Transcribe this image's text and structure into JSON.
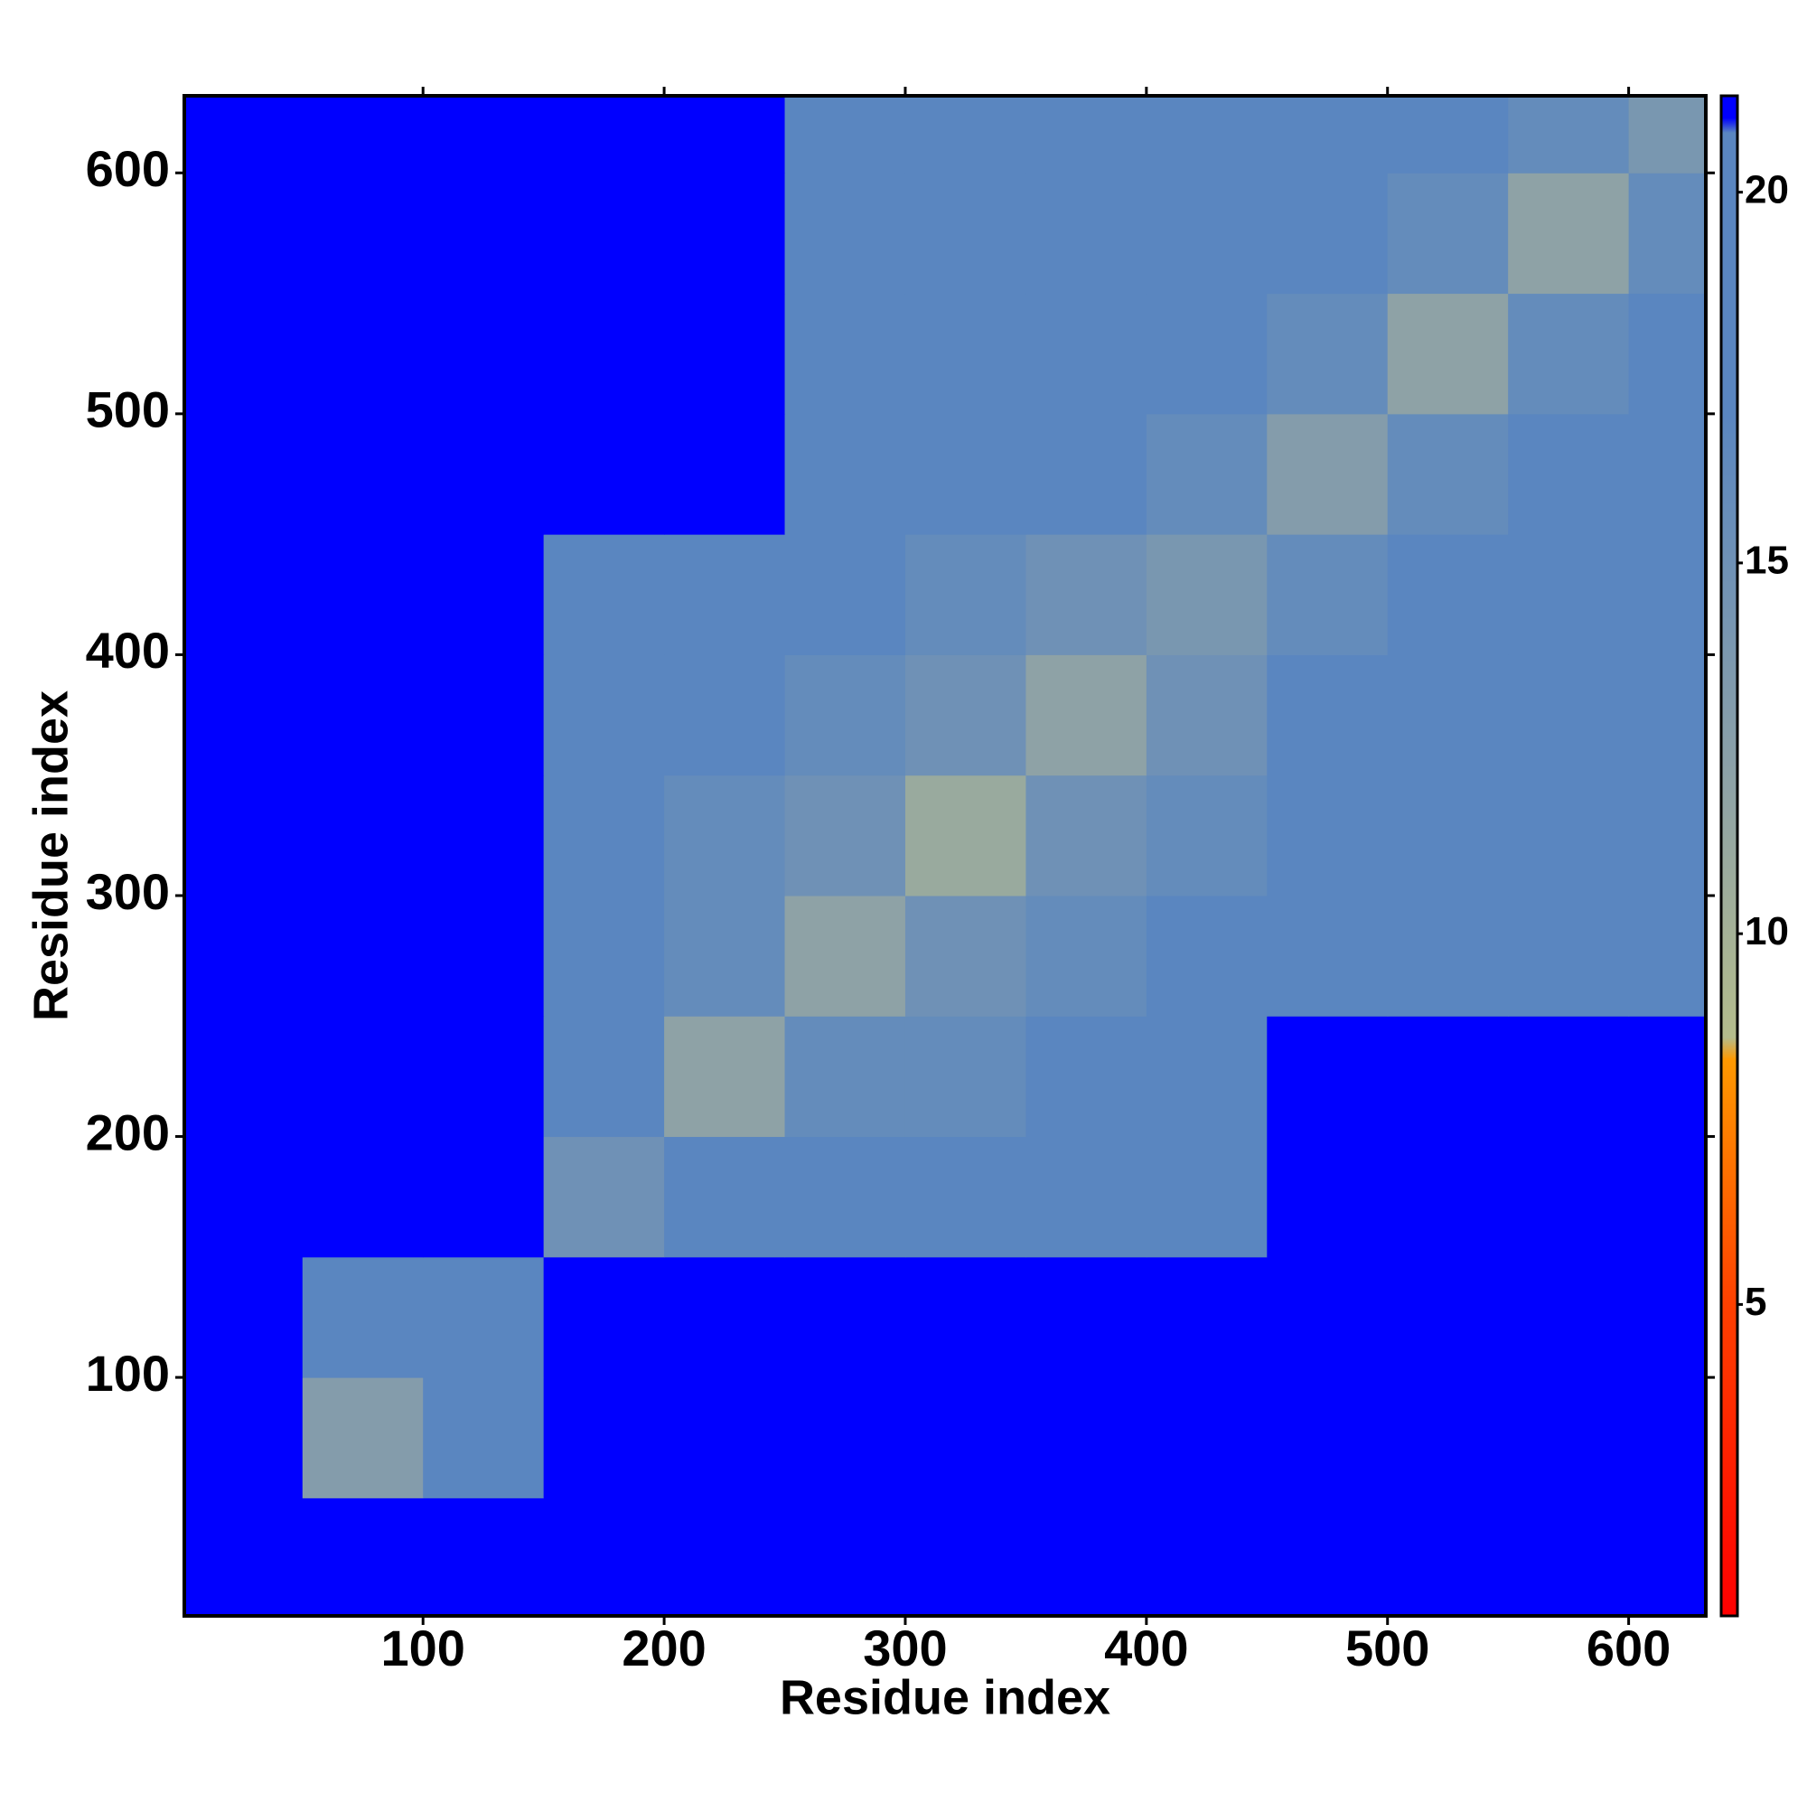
{
  "chart_data": {
    "type": "heatmap",
    "x_label": "Residue index",
    "y_label": "Residue index",
    "xbins": [
      1,
      50,
      100,
      150,
      200,
      250,
      300,
      350,
      400,
      450,
      500,
      550,
      600,
      632
    ],
    "ybins": [
      1,
      50,
      100,
      150,
      200,
      250,
      300,
      350,
      400,
      450,
      500,
      550,
      600,
      632
    ],
    "values": [
      [
        21,
        21,
        21,
        21,
        21,
        21,
        21,
        21,
        21,
        21,
        21,
        21,
        21
      ],
      [
        21,
        13,
        20,
        21,
        21,
        21,
        21,
        21,
        21,
        21,
        21,
        21,
        21
      ],
      [
        21,
        20,
        19,
        21,
        21,
        21,
        21,
        21,
        21,
        21,
        21,
        21,
        21
      ],
      [
        21,
        21,
        21,
        15,
        17,
        17,
        18,
        19,
        20,
        21,
        21,
        21,
        21
      ],
      [
        21,
        21,
        21,
        17,
        12,
        16,
        16,
        17,
        18,
        21,
        21,
        21,
        21
      ],
      [
        21,
        21,
        21,
        17,
        16,
        12,
        15,
        16,
        17,
        19,
        19,
        19,
        20
      ],
      [
        21,
        21,
        21,
        18,
        16,
        15,
        11,
        15,
        16,
        18,
        19,
        19,
        20
      ],
      [
        21,
        21,
        21,
        19,
        17,
        16,
        15,
        12,
        15,
        17,
        18,
        19,
        20
      ],
      [
        21,
        21,
        21,
        20,
        18,
        17,
        16,
        15,
        14,
        16,
        17,
        18,
        19
      ],
      [
        21,
        21,
        21,
        21,
        21,
        19,
        18,
        17,
        16,
        13,
        16,
        17,
        18
      ],
      [
        21,
        21,
        21,
        21,
        21,
        19,
        19,
        18,
        17,
        16,
        12,
        16,
        17
      ],
      [
        21,
        21,
        21,
        21,
        21,
        19,
        19,
        19,
        18,
        17,
        16,
        12,
        16
      ],
      [
        21,
        21,
        21,
        21,
        21,
        20,
        20,
        20,
        19,
        18,
        17,
        16,
        14
      ]
    ],
    "xlim": [
      1,
      632
    ],
    "ylim": [
      1,
      632
    ],
    "xticks": [
      100,
      200,
      300,
      400,
      500,
      600
    ],
    "yticks": [
      100,
      200,
      300,
      400,
      500,
      600
    ],
    "zlim": [
      0.8,
      21.3
    ],
    "zticks": [
      5,
      10,
      15,
      20
    ],
    "colorscale": [
      [
        0.8,
        "#ff0000"
      ],
      [
        5,
        "#ff4000"
      ],
      [
        8.3,
        "#ff9900"
      ],
      [
        8.6,
        "#b4bc8c"
      ],
      [
        12,
        "#8ea2a6"
      ],
      [
        17,
        "#5a86c0"
      ],
      [
        20.8,
        "#5a86c0"
      ],
      [
        21,
        "#0000ff"
      ]
    ]
  }
}
